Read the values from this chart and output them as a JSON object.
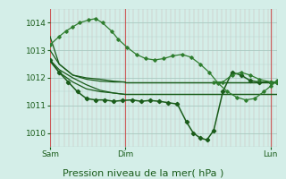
{
  "background_color": "#d4eee8",
  "plot_bg_color": "#d4eee8",
  "line_color_dark": "#1a5c1a",
  "ylim": [
    1009.5,
    1014.5
  ],
  "yticks": [
    1010,
    1011,
    1012,
    1013,
    1014
  ],
  "xlabel": "Pression niveau de la mer( hPa )",
  "xlabel_fontsize": 8,
  "tick_fontsize": 6.5,
  "day_labels": [
    "Sam",
    "Dim",
    "Lun"
  ],
  "day_positions": [
    0.0,
    0.33,
    0.97
  ],
  "vline_color": "#cc4444",
  "series": [
    {
      "x": [
        0.0,
        0.04,
        0.1,
        0.16,
        0.22,
        0.28,
        0.33
      ],
      "y": [
        1013.0,
        1012.5,
        1012.1,
        1011.95,
        1011.88,
        1011.85,
        1011.85
      ],
      "color": "#1a5c1a",
      "lw": 0.9,
      "marker": null,
      "ms": 0,
      "end_flat": true
    },
    {
      "x": [
        0.0,
        0.04,
        0.1,
        0.16,
        0.22,
        0.28,
        0.33
      ],
      "y": [
        1012.6,
        1012.2,
        1011.85,
        1011.6,
        1011.5,
        1011.45,
        1011.4
      ],
      "color": "#1a5c1a",
      "lw": 0.9,
      "marker": null,
      "ms": 0,
      "end_flat": true
    },
    {
      "x": [
        0.0,
        0.04,
        0.1,
        0.16,
        0.22,
        0.28,
        0.33
      ],
      "y": [
        1013.5,
        1012.5,
        1012.1,
        1012.0,
        1011.95,
        1011.88,
        1011.85
      ],
      "color": "#1a5c1a",
      "lw": 0.9,
      "marker": null,
      "ms": 0,
      "end_flat": true
    },
    {
      "x": [
        0.0,
        0.04,
        0.1,
        0.16,
        0.22,
        0.28,
        0.33
      ],
      "y": [
        1012.65,
        1012.3,
        1012.0,
        1011.75,
        1011.55,
        1011.45,
        1011.4
      ],
      "color": "#1a5c1a",
      "lw": 0.9,
      "marker": null,
      "ms": 0,
      "end_flat": true
    },
    {
      "x": [
        0.0,
        0.04,
        0.08,
        0.12,
        0.16,
        0.2,
        0.24,
        0.28,
        0.32,
        0.36,
        0.4,
        0.44,
        0.48,
        0.52,
        0.56,
        0.6,
        0.63,
        0.66,
        0.69,
        0.72,
        0.76,
        0.8,
        0.84,
        0.88,
        0.92,
        0.97,
        1.0
      ],
      "y": [
        1012.65,
        1012.2,
        1011.85,
        1011.5,
        1011.25,
        1011.2,
        1011.2,
        1011.15,
        1011.18,
        1011.2,
        1011.15,
        1011.18,
        1011.15,
        1011.1,
        1011.05,
        1010.4,
        1010.0,
        1009.82,
        1009.75,
        1010.1,
        1011.5,
        1012.2,
        1012.1,
        1011.9,
        1011.85,
        1011.85,
        1011.85
      ],
      "color": "#1a5c1a",
      "lw": 1.1,
      "marker": "D",
      "ms": 2.2
    },
    {
      "x": [
        0.0,
        0.04,
        0.07,
        0.1,
        0.13,
        0.17,
        0.2,
        0.23,
        0.27,
        0.3,
        0.34,
        0.38,
        0.42,
        0.46,
        0.5,
        0.54,
        0.58,
        0.62,
        0.66,
        0.7,
        0.74,
        0.78,
        0.82,
        0.86,
        0.9,
        0.94,
        0.97,
        1.0
      ],
      "y": [
        1013.2,
        1013.5,
        1013.7,
        1013.85,
        1014.0,
        1014.1,
        1014.15,
        1014.0,
        1013.7,
        1013.4,
        1013.1,
        1012.85,
        1012.7,
        1012.65,
        1012.7,
        1012.8,
        1012.85,
        1012.75,
        1012.5,
        1012.2,
        1011.8,
        1011.5,
        1011.3,
        1011.2,
        1011.25,
        1011.5,
        1011.7,
        1011.9
      ],
      "color": "#2e7d2e",
      "lw": 0.9,
      "marker": "D",
      "ms": 1.8
    },
    {
      "x": [
        0.72,
        0.76,
        0.8,
        0.84,
        0.88,
        0.92,
        0.97,
        1.0
      ],
      "y": [
        1011.85,
        1011.85,
        1012.1,
        1012.2,
        1012.1,
        1011.95,
        1011.85,
        1011.85
      ],
      "color": "#2e7d2e",
      "lw": 0.9,
      "marker": "D",
      "ms": 1.8
    }
  ]
}
